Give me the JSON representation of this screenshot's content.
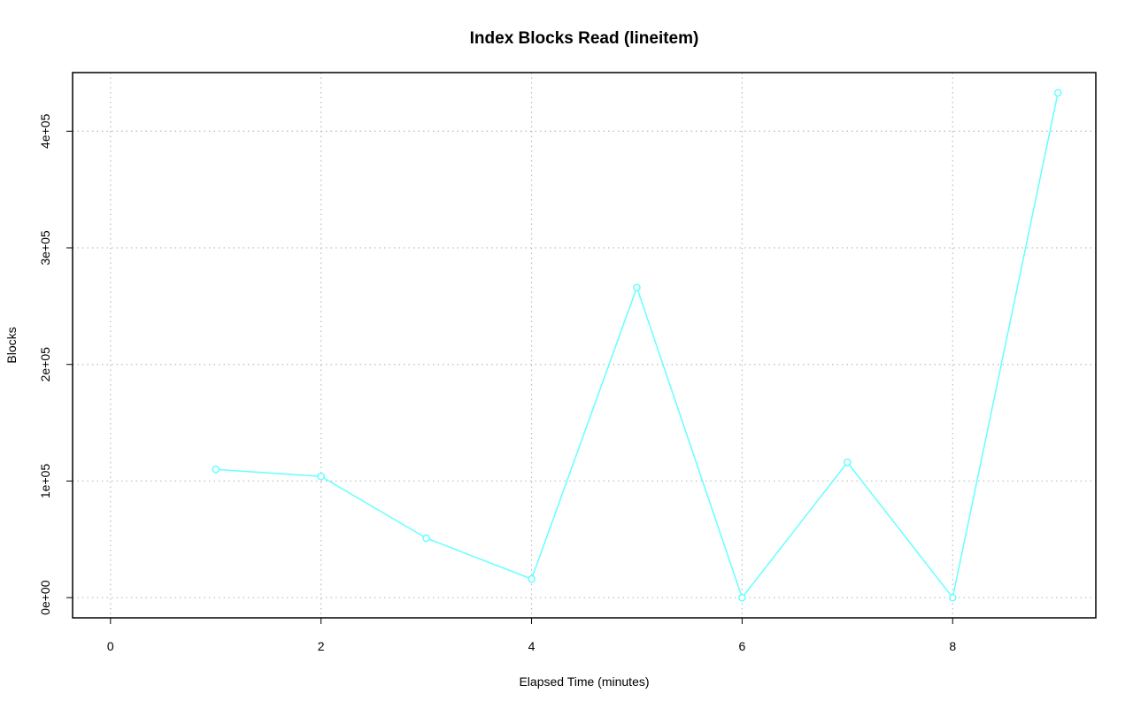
{
  "chart_data": {
    "type": "line",
    "title": "Index Blocks Read (lineitem)",
    "xlabel": "Elapsed Time (minutes)",
    "ylabel": "Blocks",
    "x": [
      1,
      2,
      3,
      4,
      5,
      6,
      7,
      8,
      9
    ],
    "values": [
      110000,
      104000,
      51000,
      16000,
      266000,
      0,
      116000,
      0,
      433000
    ],
    "color": "#66ffff",
    "xlim": [
      -0.36,
      9.36
    ],
    "xticks": [
      0,
      2,
      4,
      6,
      8
    ],
    "ylim": [
      -17320,
      450320
    ],
    "yticks": [
      {
        "value": 0,
        "label": "0e+00"
      },
      {
        "value": 100000,
        "label": "1e+05"
      },
      {
        "value": 200000,
        "label": "2e+05"
      },
      {
        "value": 300000,
        "label": "3e+05"
      },
      {
        "value": 400000,
        "label": "4e+05"
      }
    ],
    "grid": true
  }
}
